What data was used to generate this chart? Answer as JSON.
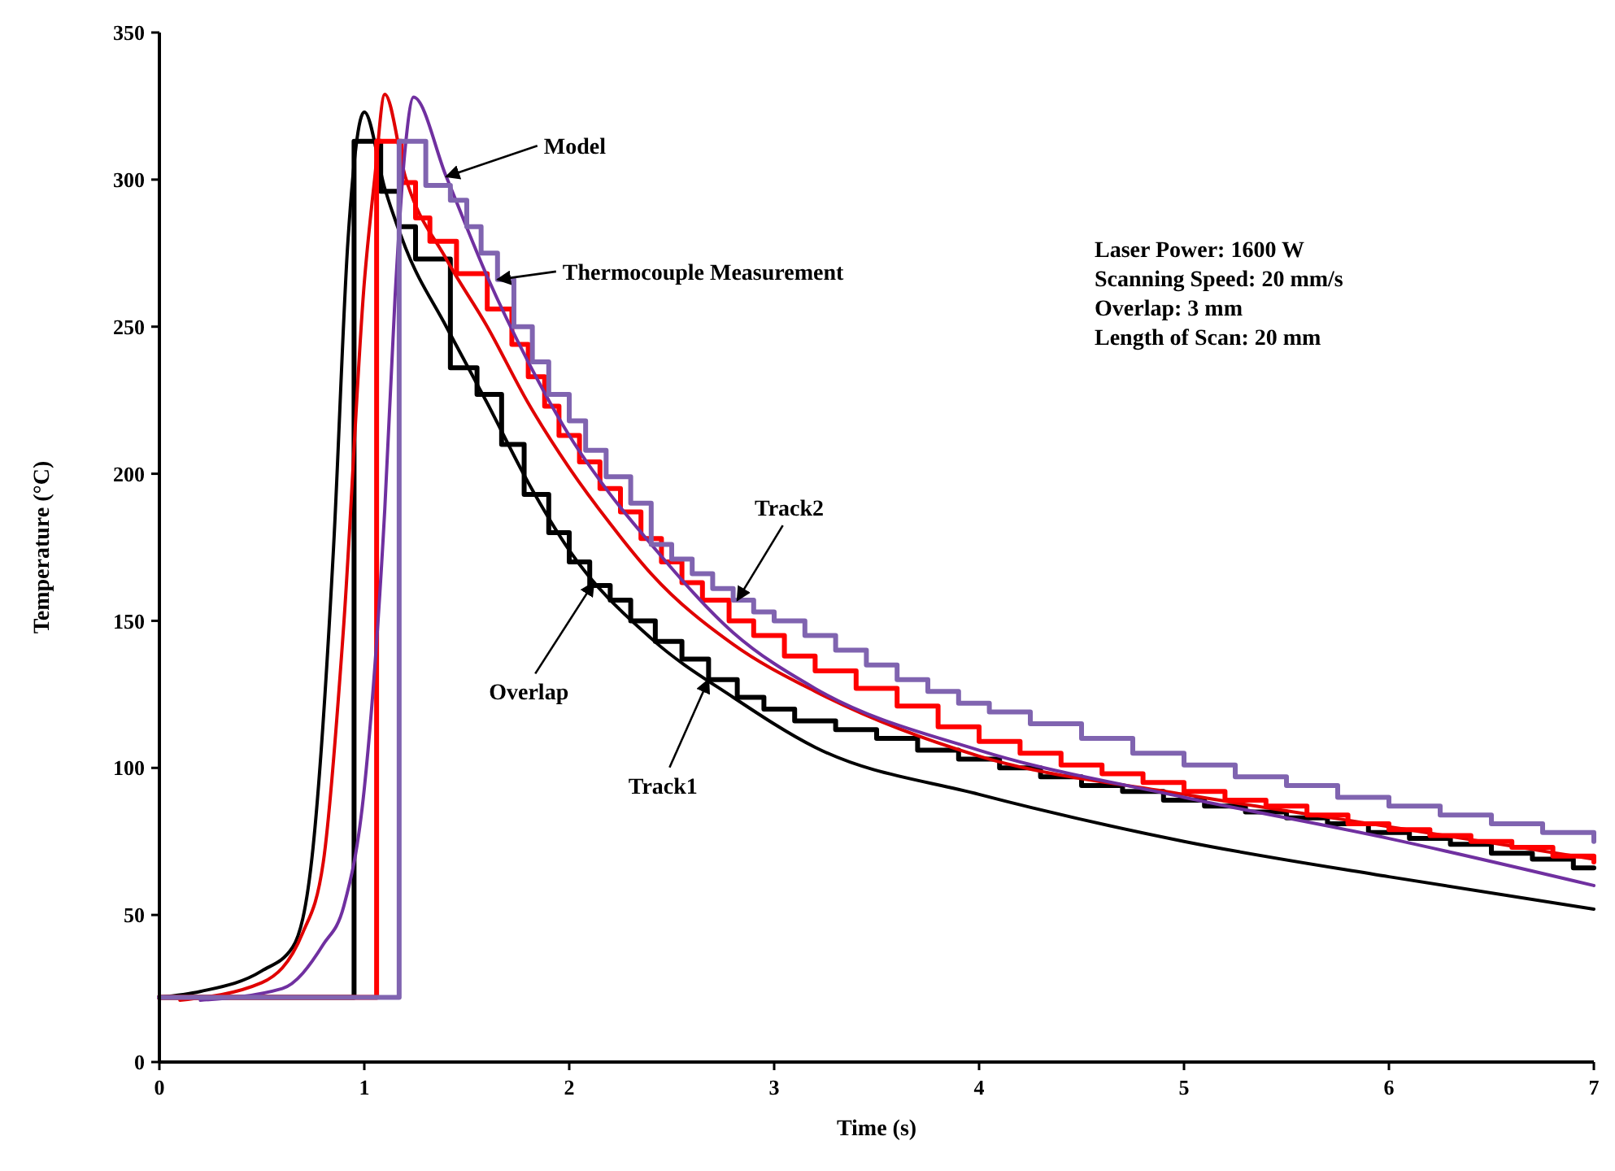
{
  "chart_data": {
    "type": "line",
    "xlabel": "Time (s)",
    "ylabel": "Temperature (°C)",
    "xlim": [
      0,
      7
    ],
    "xticks": [
      0,
      1,
      2,
      3,
      4,
      5,
      6,
      7
    ],
    "ylim": [
      0,
      350
    ],
    "yticks": [
      0,
      50,
      100,
      150,
      200,
      250,
      300,
      350
    ],
    "series": [
      {
        "type": "line",
        "color": "#000000",
        "x": [
          0,
          0.2,
          0.5,
          0.65,
          0.75,
          0.85,
          0.92,
          1.0,
          1.1,
          1.2,
          1.4,
          1.6,
          1.8,
          2.0,
          2.4,
          2.8,
          3.2,
          4,
          5,
          6,
          7
        ],
        "values": [
          22,
          24,
          31,
          39,
          73,
          175,
          279,
          323,
          297,
          277,
          250,
          224,
          197,
          174,
          144,
          124,
          107,
          91,
          75,
          63,
          52
        ]
      },
      {
        "type": "step",
        "color": "#000000",
        "x": [
          0,
          0.95,
          1.08,
          1.17,
          1.25,
          1.42,
          1.55,
          1.67,
          1.78,
          1.9,
          2.0,
          2.1,
          2.2,
          2.3,
          2.42,
          2.55,
          2.68,
          2.82,
          2.95,
          3.1,
          3.3,
          3.5,
          3.7,
          3.9,
          4.1,
          4.3,
          4.5,
          4.7,
          4.9,
          5.1,
          5.3,
          5.5,
          5.7,
          5.9,
          6.1,
          6.3,
          6.5,
          6.7,
          6.9,
          7
        ],
        "values": [
          22,
          313,
          296,
          284,
          273,
          236,
          227,
          210,
          193,
          180,
          170,
          162,
          157,
          150,
          143,
          137,
          130,
          124,
          120,
          116,
          113,
          110,
          106,
          103,
          100,
          97,
          94,
          92,
          89,
          87,
          85,
          83,
          81,
          78,
          76,
          74,
          71,
          69,
          66,
          66
        ]
      },
      {
        "type": "line",
        "color": "#e00000",
        "x": [
          0.1,
          0.5,
          0.7,
          0.8,
          0.9,
          1.0,
          1.05,
          1.1,
          1.2,
          1.4,
          1.6,
          1.8,
          2.0,
          2.2,
          2.4,
          2.8,
          3.2,
          4,
          5,
          6,
          7
        ],
        "values": [
          21,
          27,
          44,
          68,
          149,
          265,
          300,
          329,
          301,
          273,
          250,
          224,
          202,
          183,
          166,
          142,
          126,
          104,
          91,
          80,
          69
        ]
      },
      {
        "type": "step",
        "color": "#ff0000",
        "x": [
          0,
          1.06,
          1.18,
          1.25,
          1.32,
          1.45,
          1.6,
          1.72,
          1.8,
          1.88,
          1.95,
          2.05,
          2.15,
          2.25,
          2.35,
          2.45,
          2.55,
          2.65,
          2.78,
          2.9,
          3.05,
          3.2,
          3.4,
          3.6,
          3.8,
          4.0,
          4.2,
          4.4,
          4.6,
          4.8,
          5.0,
          5.2,
          5.4,
          5.6,
          5.8,
          6.0,
          6.2,
          6.4,
          6.6,
          6.8,
          7.0
        ],
        "values": [
          22,
          313,
          299,
          287,
          279,
          268,
          256,
          244,
          233,
          223,
          213,
          204,
          195,
          187,
          178,
          170,
          163,
          157,
          150,
          145,
          138,
          133,
          127,
          121,
          114,
          109,
          105,
          101,
          98,
          95,
          92,
          89,
          87,
          84,
          81,
          79,
          77,
          75,
          73,
          70,
          68
        ]
      },
      {
        "type": "line",
        "color": "#7030a0",
        "x": [
          0.2,
          0.6,
          0.8,
          0.9,
          1.0,
          1.1,
          1.15,
          1.2,
          1.24,
          1.4,
          1.6,
          1.8,
          2.0,
          2.2,
          2.4,
          2.8,
          3.2,
          4,
          5,
          6,
          7
        ],
        "values": [
          21,
          25,
          40,
          53,
          93,
          188,
          260,
          311,
          328,
          301,
          267,
          238,
          213,
          193,
          176,
          146,
          127,
          106,
          90,
          76,
          60
        ]
      },
      {
        "type": "step",
        "color": "#8064b0",
        "x": [
          0,
          1.17,
          1.3,
          1.42,
          1.5,
          1.57,
          1.65,
          1.73,
          1.82,
          1.9,
          2.0,
          2.08,
          2.18,
          2.3,
          2.4,
          2.5,
          2.6,
          2.7,
          2.8,
          2.9,
          3.0,
          3.15,
          3.3,
          3.45,
          3.6,
          3.75,
          3.9,
          4.05,
          4.25,
          4.5,
          4.75,
          5.0,
          5.25,
          5.5,
          5.75,
          6.0,
          6.25,
          6.5,
          6.75,
          7.0
        ],
        "values": [
          22,
          313,
          298,
          293,
          284,
          275,
          266,
          250,
          238,
          227,
          218,
          208,
          199,
          190,
          176,
          171,
          166,
          161,
          157,
          153,
          150,
          145,
          140,
          135,
          130,
          126,
          122,
          119,
          115,
          110,
          105,
          101,
          97,
          94,
          90,
          87,
          84,
          81,
          78,
          75
        ]
      }
    ],
    "annotations": [
      {
        "text": "Model",
        "x": 1.4,
        "y": 301
      },
      {
        "text": "Thermocouple Measurement",
        "x": 1.65,
        "y": 266
      },
      {
        "text": "Track2",
        "x": 2.82,
        "y": 157
      },
      {
        "text": "Overlap",
        "x": 2.12,
        "y": 163
      },
      {
        "text": "Track1",
        "x": 2.68,
        "y": 130
      },
      "Laser Power: 1600 W",
      "Scanning Speed: 20 mm/s",
      "Overlap: 3 mm",
      "Length of Scan: 20 mm"
    ]
  }
}
